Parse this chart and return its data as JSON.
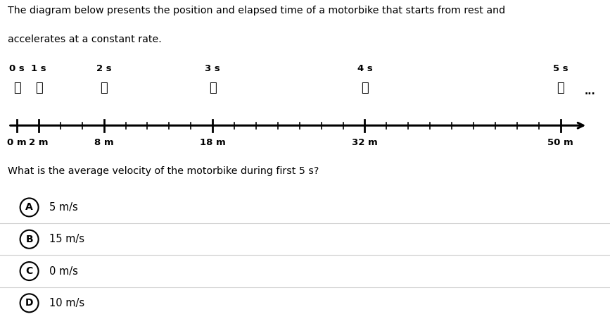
{
  "title_line1": "The diagram below presents the position and elapsed time of a motorbike that starts from rest and",
  "title_line2": "accelerates at a constant rate.",
  "question": "What is the average velocity of the motorbike during first 5 s?",
  "positions_m": [
    0,
    2,
    8,
    18,
    32,
    50
  ],
  "times_s": [
    "0 s",
    "1 s",
    "2 s",
    "3 s",
    "4 s",
    "5 s"
  ],
  "pos_labels": [
    "0 m",
    "2 m",
    "8 m",
    "18 m",
    "32 m",
    "50 m"
  ],
  "choices": [
    "A",
    "B",
    "C",
    "D"
  ],
  "choice_labels": [
    "5 m/s",
    "15 m/s",
    "0 m/s",
    "10 m/s"
  ],
  "white": "#ffffff",
  "light_gray": "#f2f2f2",
  "text_color": "#000000",
  "divider_color": "#d0d0d0",
  "timeline_xlim": [
    -1,
    54
  ],
  "timeline_ylim": [
    -2.0,
    4.0
  ]
}
